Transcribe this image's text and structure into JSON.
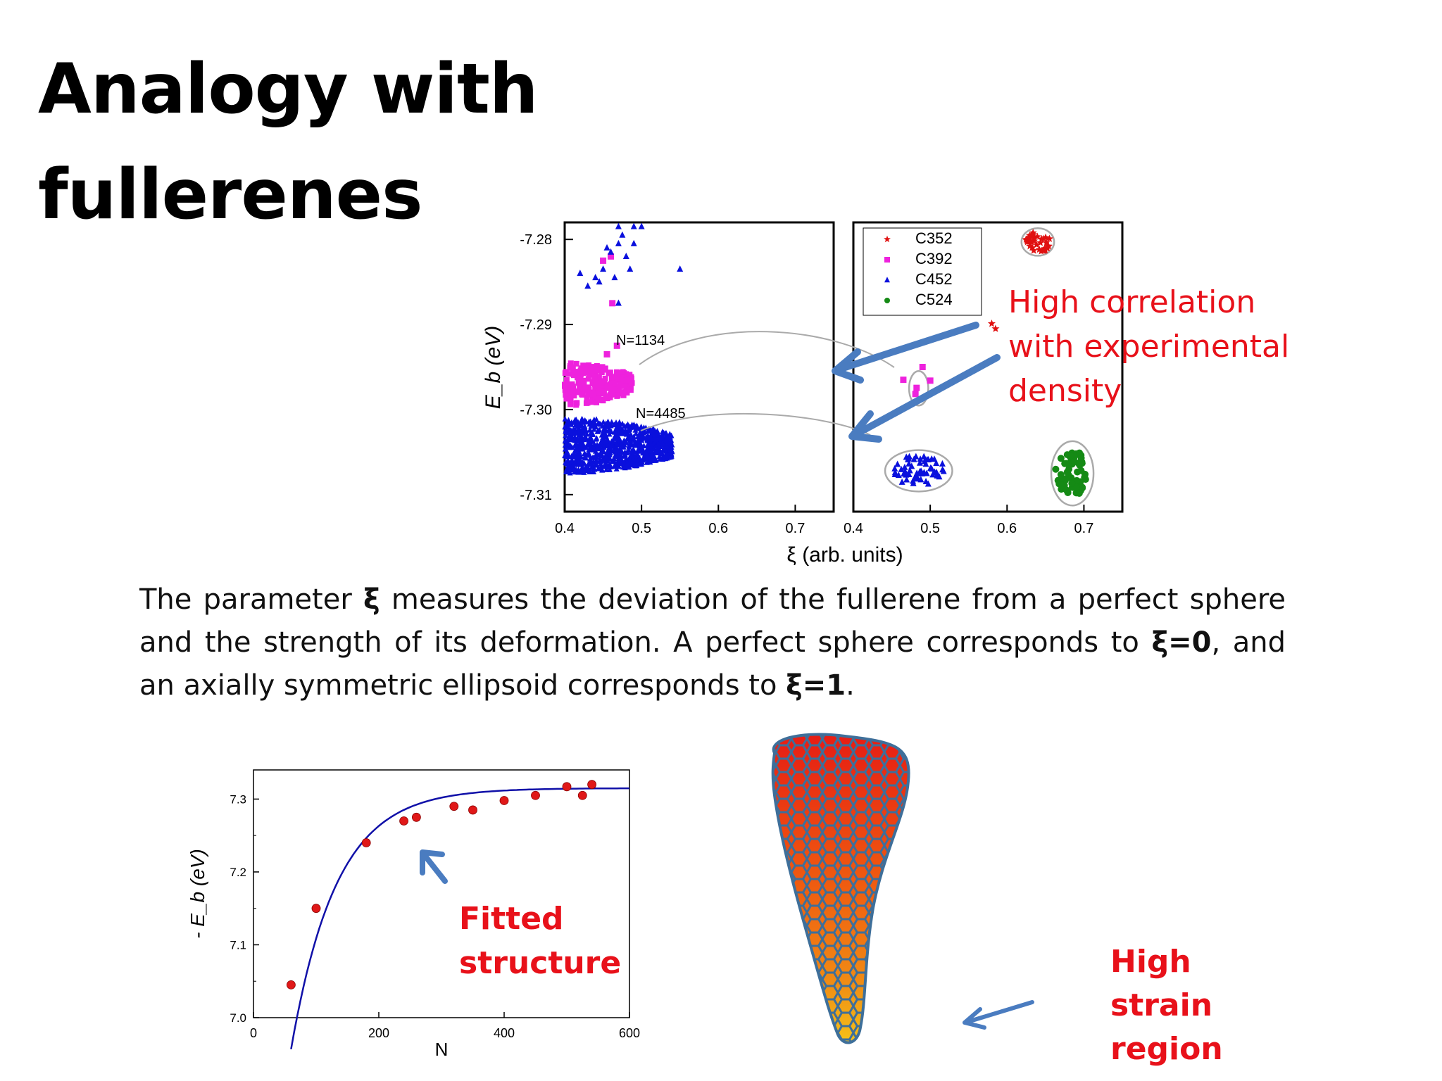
{
  "title": {
    "line1": "Analogy with",
    "line2": "fullerenes"
  },
  "colors": {
    "C352": "#e01010",
    "C392": "#ee22dd",
    "C452": "#0a10dd",
    "C524": "#158a15",
    "annotation_red": "#e8111a",
    "arrow_blue": "#4a7cc0",
    "fit_curve": "#1010a8"
  },
  "chart_data": [
    {
      "type": "scatter",
      "panel": "left",
      "ylabel": "E_b (eV)",
      "xlabel": "ξ (arb. units)",
      "xlim": [
        0.4,
        0.75
      ],
      "ylim": [
        -7.312,
        -7.278
      ],
      "xticks": [
        "0.4",
        "0.5",
        "0.6",
        "0.7"
      ],
      "yticks": [
        "-7.28",
        "-7.29",
        "-7.30",
        "-7.31"
      ],
      "ytick_values": [
        -7.28,
        -7.29,
        -7.3,
        -7.31
      ],
      "xtick_values": [
        0.4,
        0.5,
        0.6,
        0.7
      ],
      "annotations": [
        "N=1134",
        "N=4485"
      ],
      "series": [
        {
          "name": "C392",
          "marker": "square",
          "cluster": {
            "x_range": [
              0.4,
              0.49
            ],
            "y_range": [
              -7.2995,
              -7.2945
            ]
          },
          "outliers": [
            [
              0.45,
              -7.2825
            ],
            [
              0.46,
              -7.282
            ],
            [
              0.462,
              -7.2875
            ],
            [
              0.455,
              -7.2935
            ],
            [
              0.468,
              -7.2925
            ]
          ]
        },
        {
          "name": "C452",
          "marker": "triangle",
          "cluster": {
            "x_range": [
              0.4,
              0.54
            ],
            "y_range": [
              -7.3075,
              -7.301
            ]
          },
          "outliers": [
            [
              0.42,
              -7.284
            ],
            [
              0.43,
              -7.2855
            ],
            [
              0.44,
              -7.2845
            ],
            [
              0.45,
              -7.2835
            ],
            [
              0.46,
              -7.2815
            ],
            [
              0.47,
              -7.2805
            ],
            [
              0.48,
              -7.282
            ],
            [
              0.49,
              -7.2805
            ],
            [
              0.5,
              -7.2785
            ],
            [
              0.47,
              -7.2785
            ],
            [
              0.475,
              -7.2795
            ],
            [
              0.455,
              -7.281
            ],
            [
              0.465,
              -7.2845
            ],
            [
              0.485,
              -7.2835
            ],
            [
              0.55,
              -7.2835
            ],
            [
              0.47,
              -7.2875
            ],
            [
              0.49,
              -7.2785
            ],
            [
              0.445,
              -7.285
            ]
          ]
        }
      ]
    },
    {
      "type": "scatter",
      "panel": "right",
      "xlim": [
        0.4,
        0.75
      ],
      "ylim": [
        -7.312,
        -7.278
      ],
      "xticks": [
        "0.4",
        "0.5",
        "0.6",
        "0.7"
      ],
      "xtick_values": [
        0.4,
        0.5,
        0.6,
        0.7
      ],
      "legend": [
        "C352",
        "C392",
        "C452",
        "C524"
      ],
      "legend_position": "top-left",
      "series": [
        {
          "name": "C352",
          "marker": "star",
          "cluster": {
            "cx": 0.64,
            "cy": -7.2803,
            "rx": 0.017,
            "ry": 0.0012
          },
          "outliers": [
            [
              0.58,
              -7.2899
            ],
            [
              0.585,
              -7.2905
            ]
          ]
        },
        {
          "name": "C392",
          "marker": "square",
          "cluster": {
            "cx": 0.485,
            "cy": -7.2975,
            "rx": 0.01,
            "ry": 0.0015
          },
          "outliers": [
            [
              0.49,
              -7.295
            ],
            [
              0.465,
              -7.2965
            ],
            [
              0.5,
              -7.2966
            ]
          ]
        },
        {
          "name": "C452",
          "marker": "triangle",
          "cluster": {
            "cx": 0.485,
            "cy": -7.3072,
            "rx": 0.035,
            "ry": 0.0018
          },
          "outliers": []
        },
        {
          "name": "C524",
          "marker": "circle",
          "cluster": {
            "cx": 0.685,
            "cy": -7.3075,
            "rx": 0.022,
            "ry": 0.0028
          },
          "outliers": []
        }
      ]
    },
    {
      "type": "scatter",
      "panel": "bottom",
      "xlabel": "N",
      "ylabel": "- E_b (eV)",
      "xlim": [
        0,
        600
      ],
      "ylim": [
        7.0,
        7.34
      ],
      "xticks": [
        "0",
        "200",
        "400",
        "600"
      ],
      "xtick_values": [
        0,
        200,
        400,
        600
      ],
      "yticks": [
        "7.0",
        "7.1",
        "7.2",
        "7.3"
      ],
      "ytick_values": [
        7.0,
        7.1,
        7.2,
        7.3
      ],
      "series": [
        {
          "name": "data",
          "x": [
            60,
            100,
            180,
            240,
            260,
            320,
            350,
            400,
            450,
            500,
            525,
            540
          ],
          "y": [
            7.045,
            7.15,
            7.24,
            7.27,
            7.275,
            7.29,
            7.285,
            7.298,
            7.305,
            7.317,
            7.305,
            7.32
          ]
        }
      ],
      "fit": {
        "asymptote": 7.315,
        "amplitude": 0.82,
        "rate": 0.0138
      }
    }
  ],
  "annotations": {
    "correlation": [
      "High correlation",
      "with experimental",
      "density"
    ],
    "fitted": [
      "Fitted",
      "structure"
    ],
    "strain": [
      "High",
      "strain",
      "region"
    ]
  },
  "description": {
    "t1": "The parameter ",
    "xi": "ξ",
    "t2": " measures the deviation of the fullerene from a perfect sphere and the strength of its deformation. A perfect sphere corresponds to ",
    "xi0": "ξ=0",
    "t3": ", and an axially symmetric ellipsoid corresponds to ",
    "xi1": "ξ=1",
    "t4": "."
  }
}
